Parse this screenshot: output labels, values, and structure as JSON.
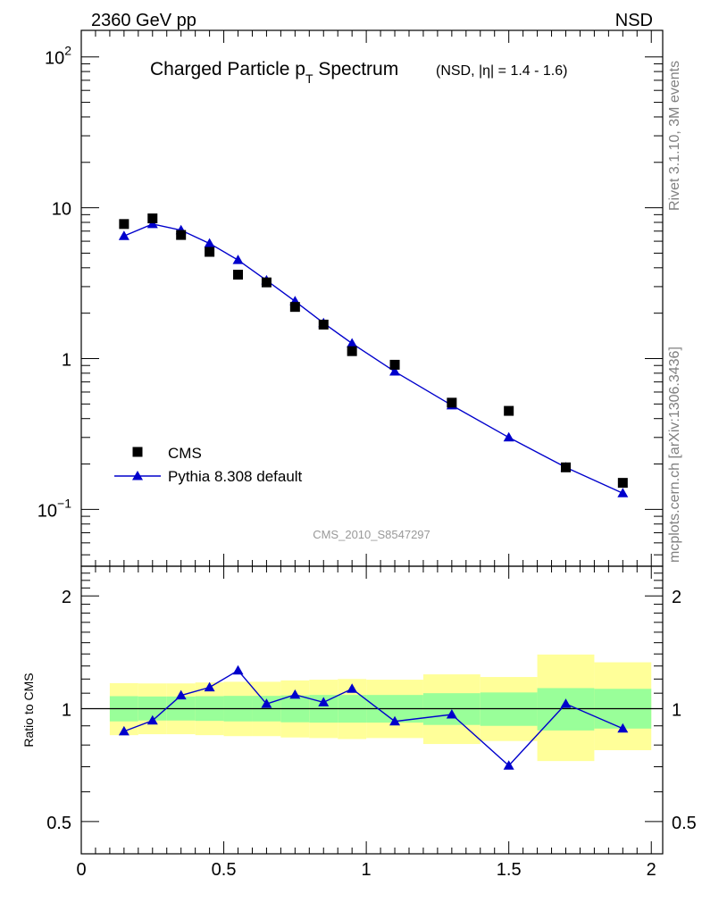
{
  "header": {
    "left": "2360 GeV pp",
    "right": "NSD"
  },
  "side_labels": {
    "top": "Rivet 3.1.10,  3M events",
    "bottom": "mcplots.cern.ch [arXiv:1306.3436]"
  },
  "watermark": "CMS_2010_S8547297",
  "chart_data": [
    {
      "type": "scatter",
      "panel": "main",
      "title": "Charged Particle p",
      "title_sub": "T",
      "title_rest": " Spectrum",
      "subtitle": "(NSD, |η| = 1.4 - 1.6)",
      "yscale": "log",
      "ylim": [
        0.042,
        150
      ],
      "xlim": [
        0,
        2.04
      ],
      "y_ticks": [
        {
          "value": 100,
          "base": "10",
          "exp": "2"
        },
        {
          "value": 10,
          "label": "10"
        },
        {
          "value": 1,
          "label": "1"
        },
        {
          "value": 0.1,
          "base": "10",
          "exp": "−1"
        }
      ],
      "legend": {
        "position": "bottom-left",
        "entries": [
          "CMS",
          "Pythia 8.308 default"
        ]
      },
      "series": [
        {
          "name": "CMS",
          "marker": "square",
          "color": "#000000",
          "x": [
            0.15,
            0.25,
            0.35,
            0.45,
            0.55,
            0.65,
            0.75,
            0.85,
            0.95,
            1.1,
            1.3,
            1.5,
            1.7,
            1.9
          ],
          "y": [
            7.8,
            8.5,
            6.6,
            5.1,
            3.6,
            3.2,
            2.2,
            1.68,
            1.12,
            0.91,
            0.51,
            0.45,
            0.19,
            0.15
          ]
        },
        {
          "name": "Pythia 8.308 default",
          "marker": "triangle",
          "color": "#0000cc",
          "x": [
            0.15,
            0.25,
            0.35,
            0.45,
            0.55,
            0.65,
            0.75,
            0.85,
            0.95,
            1.1,
            1.3,
            1.5,
            1.7,
            1.9
          ],
          "y": [
            6.5,
            7.8,
            7.1,
            5.8,
            4.5,
            3.3,
            2.4,
            1.72,
            1.26,
            0.82,
            0.49,
            0.3,
            0.19,
            0.128
          ]
        }
      ]
    },
    {
      "type": "line",
      "panel": "ratio",
      "ylabel": "Ratio to CMS",
      "yscale": "log",
      "ylim": [
        0.41,
        2.4
      ],
      "xlim": [
        0,
        2.04
      ],
      "y_ticks": [
        {
          "value": 2,
          "label": "2"
        },
        {
          "value": 1,
          "label": "1"
        },
        {
          "value": 0.5,
          "label": "0.5"
        }
      ],
      "x_ticks": [
        {
          "value": 0,
          "label": "0"
        },
        {
          "value": 0.5,
          "label": "0.5"
        },
        {
          "value": 1,
          "label": "1"
        },
        {
          "value": 1.5,
          "label": "1.5"
        },
        {
          "value": 2,
          "label": "2"
        }
      ],
      "bands": [
        {
          "x0": 0.1,
          "x1": 0.2,
          "y1_lo": 0.925,
          "y1_hi": 1.08,
          "y2_lo": 0.85,
          "y2_hi": 1.17
        },
        {
          "x0": 0.2,
          "x1": 0.3,
          "y1_lo": 0.93,
          "y1_hi": 1.078,
          "y2_lo": 0.855,
          "y2_hi": 1.168
        },
        {
          "x0": 0.3,
          "x1": 0.4,
          "y1_lo": 0.93,
          "y1_hi": 1.078,
          "y2_lo": 0.855,
          "y2_hi": 1.168
        },
        {
          "x0": 0.4,
          "x1": 0.5,
          "y1_lo": 0.928,
          "y1_hi": 1.08,
          "y2_lo": 0.85,
          "y2_hi": 1.175
        },
        {
          "x0": 0.5,
          "x1": 0.6,
          "y1_lo": 0.925,
          "y1_hi": 1.082,
          "y2_lo": 0.845,
          "y2_hi": 1.18
        },
        {
          "x0": 0.6,
          "x1": 0.7,
          "y1_lo": 0.925,
          "y1_hi": 1.082,
          "y2_lo": 0.845,
          "y2_hi": 1.18
        },
        {
          "x0": 0.7,
          "x1": 0.8,
          "y1_lo": 0.92,
          "y1_hi": 1.085,
          "y2_lo": 0.838,
          "y2_hi": 1.19
        },
        {
          "x0": 0.8,
          "x1": 0.9,
          "y1_lo": 0.918,
          "y1_hi": 1.088,
          "y2_lo": 0.835,
          "y2_hi": 1.195
        },
        {
          "x0": 0.9,
          "x1": 1.0,
          "y1_lo": 0.918,
          "y1_hi": 1.088,
          "y2_lo": 0.83,
          "y2_hi": 1.2
        },
        {
          "x0": 1.0,
          "x1": 1.2,
          "y1_lo": 0.918,
          "y1_hi": 1.088,
          "y2_lo": 0.835,
          "y2_hi": 1.195
        },
        {
          "x0": 1.2,
          "x1": 1.4,
          "y1_lo": 0.905,
          "y1_hi": 1.1,
          "y2_lo": 0.805,
          "y2_hi": 1.235
        },
        {
          "x0": 1.4,
          "x1": 1.6,
          "y1_lo": 0.9,
          "y1_hi": 1.105,
          "y2_lo": 0.82,
          "y2_hi": 1.215
        },
        {
          "x0": 1.6,
          "x1": 1.8,
          "y1_lo": 0.875,
          "y1_hi": 1.135,
          "y2_lo": 0.725,
          "y2_hi": 1.395
        },
        {
          "x0": 1.8,
          "x1": 2.0,
          "y1_lo": 0.885,
          "y1_hi": 1.13,
          "y2_lo": 0.775,
          "y2_hi": 1.33
        }
      ],
      "band_colors": {
        "inner": "#99ff99",
        "outer": "#ffff99"
      },
      "reference": 1,
      "series": [
        {
          "marker": "triangle",
          "color": "#0000cc",
          "x": [
            0.15,
            0.25,
            0.35,
            0.45,
            0.55,
            0.65,
            0.75,
            0.85,
            0.95,
            1.1,
            1.3,
            1.5,
            1.7,
            1.9
          ],
          "y": [
            0.87,
            0.93,
            1.085,
            1.14,
            1.265,
            1.03,
            1.09,
            1.04,
            1.13,
            0.925,
            0.965,
            0.705,
            1.03,
            0.885
          ]
        }
      ]
    }
  ]
}
